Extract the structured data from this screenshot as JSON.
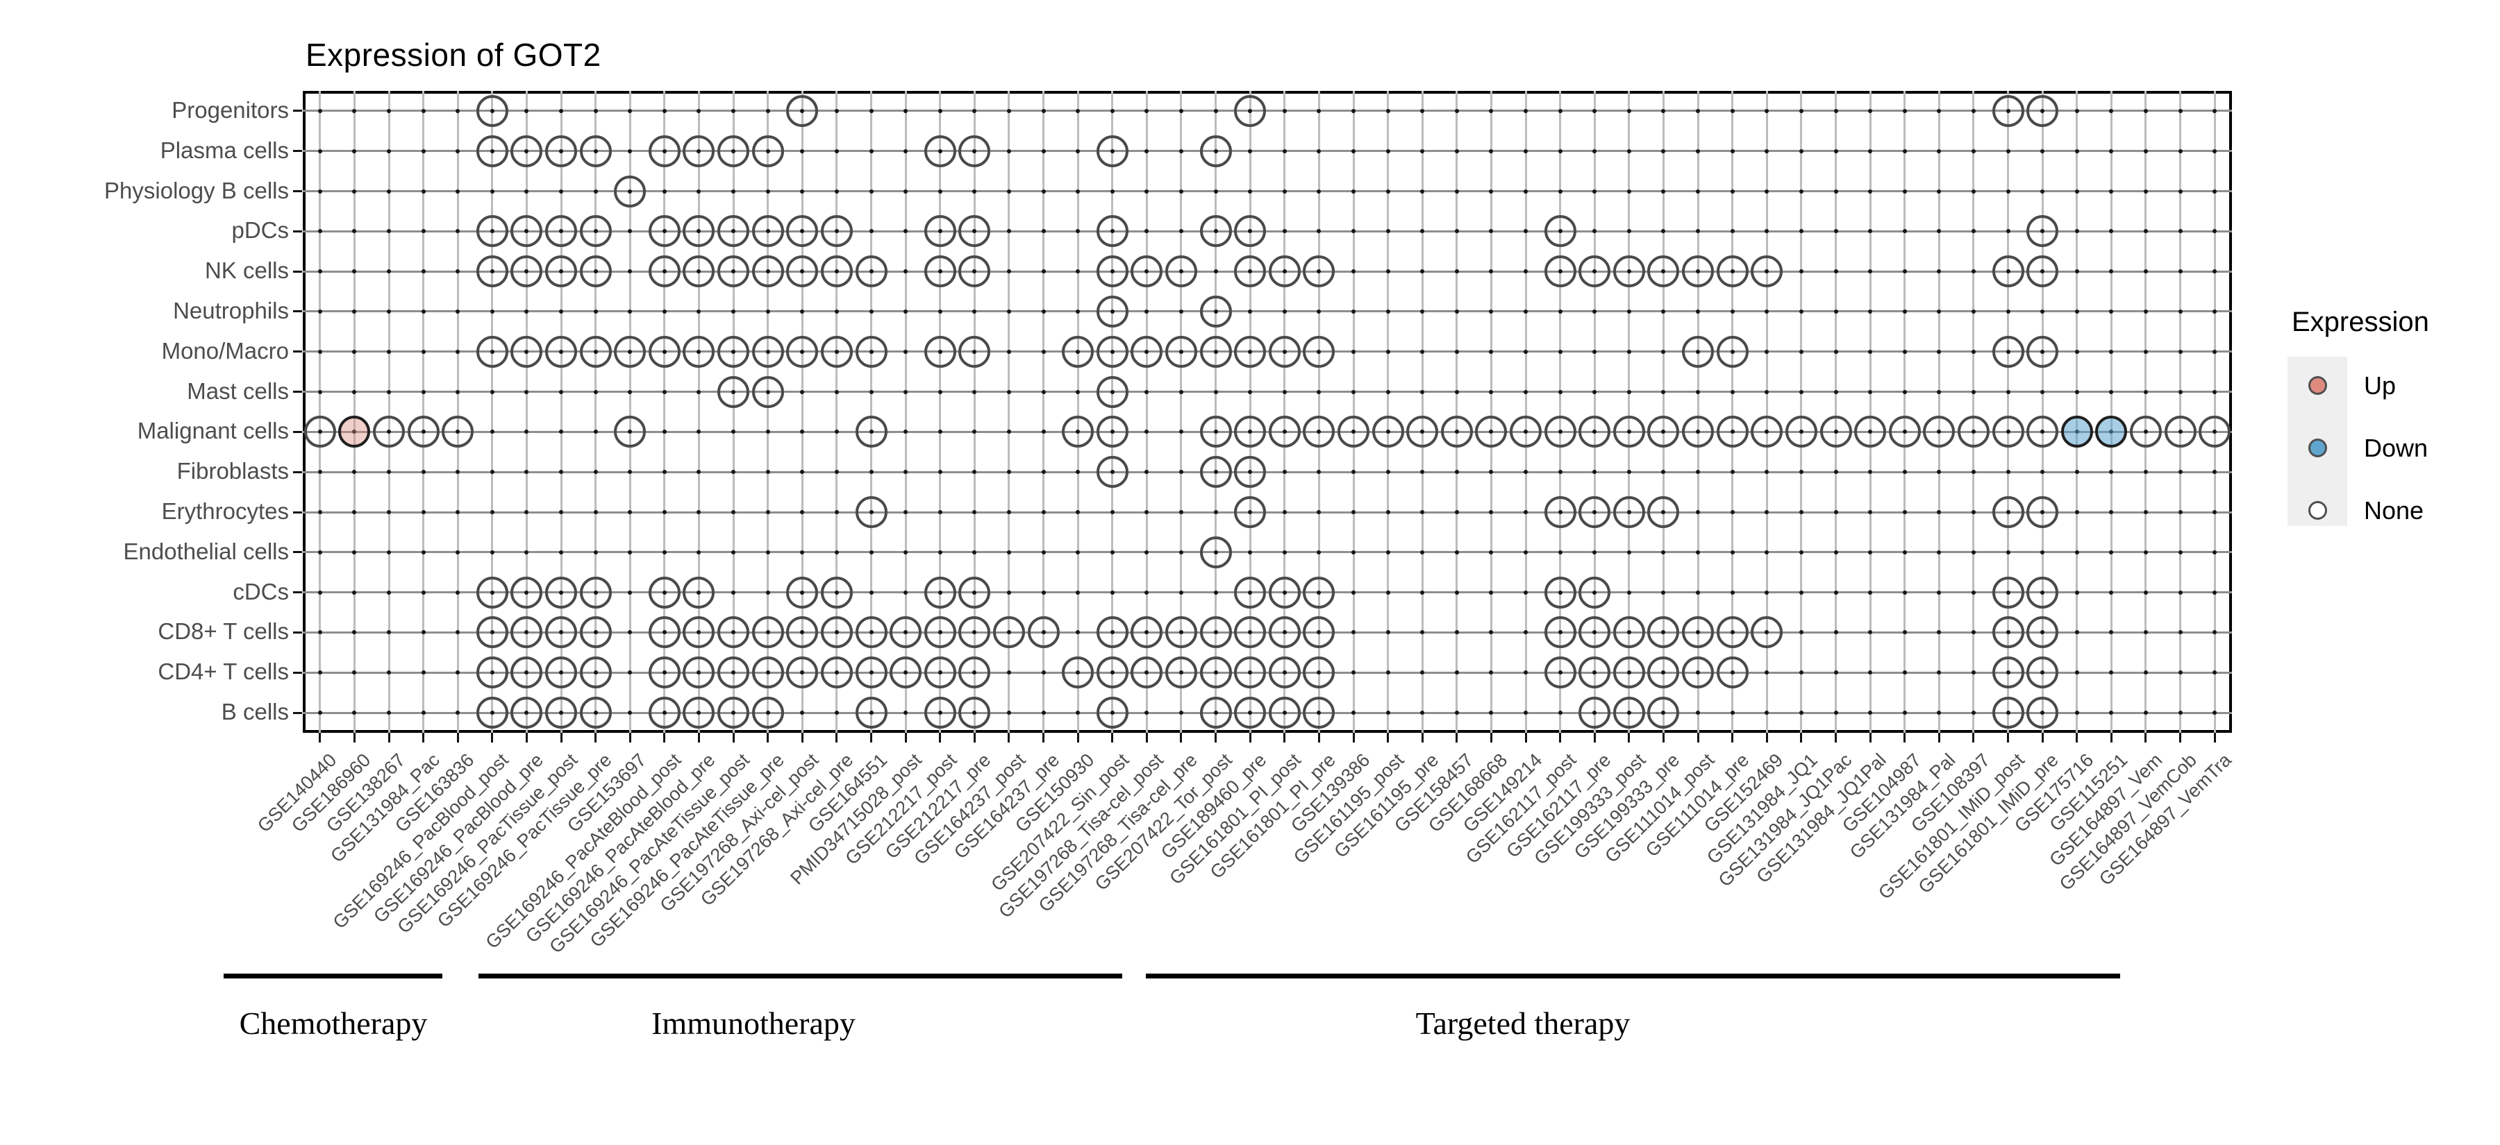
{
  "title": "Expression of GOT2",
  "legend": {
    "title": "Expression",
    "items": [
      {
        "label": "Up",
        "fill": "#DE8A7F"
      },
      {
        "label": "Down",
        "fill": "#5FA5CE"
      },
      {
        "label": "None",
        "fill": "#FFFFFF"
      }
    ]
  },
  "colors": {
    "circle_stroke": "#4a4a4a",
    "colored_circle_stroke": "#1f1f1f",
    "up_fill": "#EFCBC5",
    "down_fill": "#ACCFE6",
    "grid_vertical": "#bcbcbc",
    "grid_horizontal": "#8e8e8e",
    "intersection_dot": "#161616",
    "axis_text": "#4d4d4d",
    "panel_border": "#000000"
  },
  "chart_data": {
    "type": "heatmap",
    "title": "Expression of GOT2",
    "legend_position": "right",
    "value_encoding": {
      "absent": "small dot",
      "present": "open circle (None)",
      "up": "salmon filled circle",
      "down": "blue filled circle"
    },
    "x_categories": [
      "GSE140440",
      "GSE186960",
      "GSE138267",
      "GSE131984_Pac",
      "GSE163836",
      "GSE169246_PacBlood_post",
      "GSE169246_PacBlood_pre",
      "GSE169246_PacTissue_post",
      "GSE169246_PacTissue_pre",
      "GSE153697",
      "GSE169246_PacAteBlood_post",
      "GSE169246_PacAteBlood_pre",
      "GSE169246_PacAteTissue_post",
      "GSE169246_PacAteTissue_pre",
      "GSE197268_Axi-cel_post",
      "GSE197268_Axi-cel_pre",
      "GSE164551",
      "PMID34715028_post",
      "GSE212217_post",
      "GSE212217_pre",
      "GSE164237_post",
      "GSE164237_pre",
      "GSE150930",
      "GSE207422_Sin_post",
      "GSE197268_Tisa-cel_post",
      "GSE197268_Tisa-cel_pre",
      "GSE207422_Tor_post",
      "GSE189460_pre",
      "GSE161801_PI_post",
      "GSE161801_PI_pre",
      "GSE139386",
      "GSE161195_post",
      "GSE161195_pre",
      "GSE158457",
      "GSE168668",
      "GSE149214",
      "GSE162117_post",
      "GSE162117_pre",
      "GSE199333_post",
      "GSE199333_pre",
      "GSE111014_post",
      "GSE111014_pre",
      "GSE152469",
      "GSE131984_JQ1",
      "GSE131984_JQ1Pac",
      "GSE131984_JQ1Pal",
      "GSE104987",
      "GSE131984_Pal",
      "GSE108397",
      "GSE161801_IMiD_post",
      "GSE161801_IMiD_pre",
      "GSE175716",
      "GSE115251",
      "GSE164897_Vem",
      "GSE164897_VemCob",
      "GSE164897_VemTra"
    ],
    "y_categories": [
      "Progenitors",
      "Plasma cells",
      "Physiology B cells",
      "pDCs",
      "NK cells",
      "Neutrophils",
      "Mono/Macro",
      "Mast cells",
      "Malignant cells",
      "Fibroblasts",
      "Erythrocytes",
      "Endothelial cells",
      "cDCs",
      "CD8+ T cells",
      "CD4+ T cells",
      "B cells"
    ],
    "groups": [
      {
        "label": "Chemotherapy",
        "first_col": 1,
        "last_col": 5
      },
      {
        "label": "Immunotherapy",
        "first_col": 6,
        "last_col": 27
      },
      {
        "label": "Targeted therapy",
        "first_col": 28,
        "last_col": 56
      }
    ],
    "rows": [
      {
        "label": "Progenitors",
        "present": [
          6,
          15,
          28,
          50,
          51
        ]
      },
      {
        "label": "Plasma cells",
        "present": [
          6,
          7,
          8,
          9,
          11,
          12,
          13,
          14,
          19,
          20,
          24,
          27
        ]
      },
      {
        "label": "Physiology B cells",
        "present": [
          10
        ]
      },
      {
        "label": "pDCs",
        "present": [
          6,
          7,
          8,
          9,
          11,
          12,
          13,
          14,
          15,
          16,
          19,
          20,
          24,
          27,
          28,
          37,
          51
        ]
      },
      {
        "label": "NK cells",
        "present": [
          6,
          7,
          8,
          9,
          11,
          12,
          13,
          14,
          15,
          16,
          17,
          19,
          20,
          24,
          25,
          26,
          28,
          29,
          30,
          37,
          38,
          39,
          40,
          41,
          42,
          43,
          50,
          51
        ]
      },
      {
        "label": "Neutrophils",
        "present": [
          24,
          27
        ]
      },
      {
        "label": "Mono/Macro",
        "present": [
          6,
          7,
          8,
          9,
          10,
          11,
          12,
          13,
          14,
          15,
          16,
          17,
          19,
          20,
          23,
          24,
          25,
          26,
          27,
          28,
          29,
          30,
          41,
          42,
          50,
          51
        ]
      },
      {
        "label": "Mast cells",
        "present": [
          13,
          14,
          24
        ]
      },
      {
        "label": "Malignant cells",
        "present": [
          1,
          2,
          3,
          4,
          5,
          10,
          17,
          23,
          24,
          27,
          28,
          29,
          30,
          31,
          32,
          33,
          34,
          35,
          36,
          37,
          38,
          39,
          40,
          41,
          42,
          43,
          44,
          45,
          46,
          47,
          48,
          49,
          50,
          51,
          52,
          53,
          54,
          55,
          56
        ],
        "up": [
          2
        ],
        "down": [
          52,
          53
        ]
      },
      {
        "label": "Fibroblasts",
        "present": [
          24,
          27,
          28
        ]
      },
      {
        "label": "Erythrocytes",
        "present": [
          17,
          28,
          37,
          38,
          39,
          40,
          50,
          51
        ]
      },
      {
        "label": "Endothelial cells",
        "present": [
          27
        ]
      },
      {
        "label": "cDCs",
        "present": [
          6,
          7,
          8,
          9,
          11,
          12,
          15,
          16,
          19,
          20,
          28,
          29,
          30,
          37,
          38,
          50,
          51
        ]
      },
      {
        "label": "CD8+ T cells",
        "present": [
          6,
          7,
          8,
          9,
          11,
          12,
          13,
          14,
          15,
          16,
          17,
          18,
          19,
          20,
          21,
          22,
          24,
          25,
          26,
          27,
          28,
          29,
          30,
          37,
          38,
          39,
          40,
          41,
          42,
          43,
          50,
          51
        ]
      },
      {
        "label": "CD4+ T cells",
        "present": [
          6,
          7,
          8,
          9,
          11,
          12,
          13,
          14,
          15,
          16,
          17,
          18,
          19,
          20,
          23,
          24,
          25,
          26,
          27,
          28,
          29,
          30,
          37,
          38,
          39,
          40,
          41,
          42,
          50,
          51
        ]
      },
      {
        "label": "B cells",
        "present": [
          6,
          7,
          8,
          9,
          11,
          12,
          13,
          14,
          17,
          19,
          20,
          24,
          27,
          28,
          29,
          30,
          38,
          39,
          40,
          50,
          51
        ]
      }
    ]
  }
}
